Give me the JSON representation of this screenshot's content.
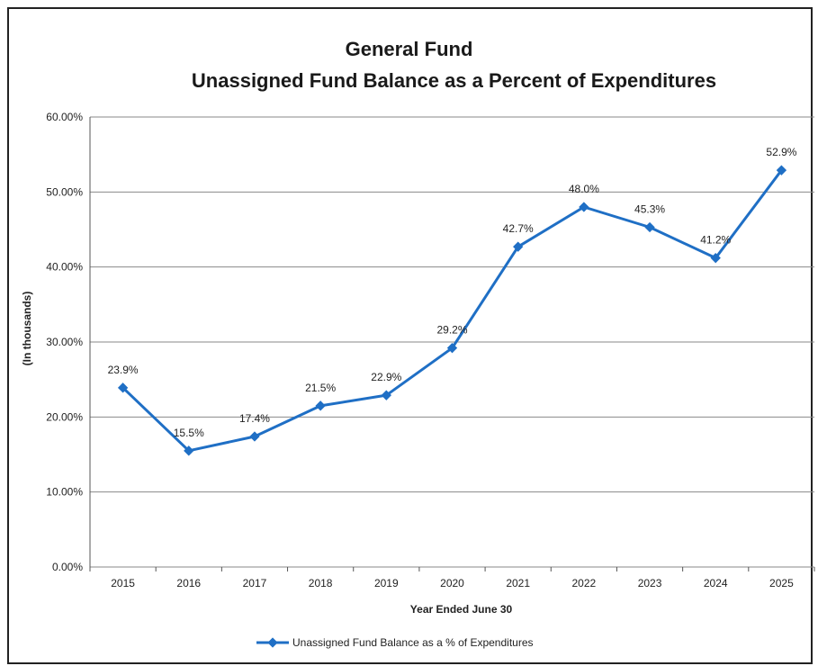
{
  "chart_data": {
    "type": "line",
    "title_line1": "General Fund",
    "title_line2": "Unassigned Fund Balance as a Percent of Expenditures",
    "xlabel": "Year Ended June 30",
    "ylabel": "(In thousands)",
    "categories": [
      "2015",
      "2016",
      "2017",
      "2018",
      "2019",
      "2020",
      "2021",
      "2022",
      "2023",
      "2024",
      "2025"
    ],
    "series": [
      {
        "name": "Unassigned Fund Balance as a % of Expenditures",
        "values": [
          23.9,
          15.5,
          17.4,
          21.5,
          22.9,
          29.2,
          42.7,
          48.0,
          45.3,
          41.2,
          52.9
        ],
        "labels": [
          "23.9%",
          "15.5%",
          "17.4%",
          "21.5%",
          "22.9%",
          "29.2%",
          "42.7%",
          "48.0%",
          "45.3%",
          "41.2%",
          "52.9%"
        ],
        "color": "#1f6fc5"
      }
    ],
    "ylim": [
      0,
      60
    ],
    "yticks": [
      "0.00%",
      "10.00%",
      "20.00%",
      "30.00%",
      "40.00%",
      "50.00%",
      "60.00%"
    ],
    "grid": true,
    "legend_position": "bottom"
  }
}
